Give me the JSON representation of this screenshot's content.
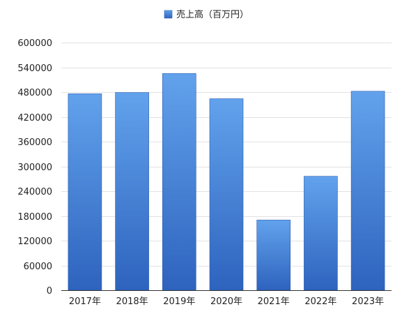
{
  "chart_data": {
    "type": "bar",
    "categories": [
      "2017年",
      "2018年",
      "2019年",
      "2020年",
      "2021年",
      "2022年",
      "2023年"
    ],
    "series": [
      {
        "name": "売上高（百万円）",
        "values": [
          476000,
          479000,
          525000,
          464000,
          170000,
          276000,
          482000
        ]
      }
    ],
    "title": "",
    "xlabel": "",
    "ylabel": "",
    "ylim": [
      0,
      600000
    ],
    "yticks": [
      0,
      60000,
      120000,
      180000,
      240000,
      300000,
      360000,
      420000,
      480000,
      540000,
      600000
    ],
    "grid": true,
    "legend_position": "top-center",
    "colors": {
      "bar_top": "#62a2ec",
      "bar_bottom": "#2e63be",
      "bar_edge": "#2a5bb0",
      "grid": "#e2e2e2",
      "axis": "#333333"
    }
  }
}
